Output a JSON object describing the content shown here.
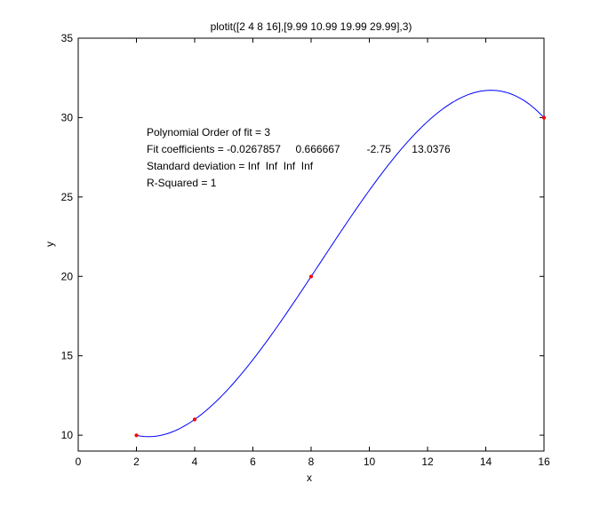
{
  "chart_data": {
    "type": "scatter",
    "title": "plotit([2 4 8 16],[9.99 10.99 19.99 29.99],3)",
    "xlabel": "x",
    "ylabel": "y",
    "xlim": [
      0,
      16
    ],
    "ylim": [
      9,
      35
    ],
    "xticks": [
      0,
      2,
      4,
      6,
      8,
      10,
      12,
      14,
      16
    ],
    "yticks": [
      10,
      15,
      20,
      25,
      30,
      35
    ],
    "grid": false,
    "series": [
      {
        "kind": "points",
        "x": [
          2,
          4,
          8,
          16
        ],
        "y": [
          9.99,
          10.99,
          19.99,
          29.99
        ],
        "color": "#ff0000"
      },
      {
        "kind": "fit_curve",
        "degree": 3,
        "coefficients": [
          -0.0267857,
          0.666667,
          -2.75,
          13.0376
        ],
        "x_range": [
          2,
          16
        ],
        "color": "#0000ff"
      }
    ],
    "annotations": [
      "Polynomial Order of fit = 3",
      "Fit coefficients = -0.0267857     0.666667         -2.75       13.0376",
      "Standard deviation = Inf  Inf  Inf  Inf",
      "R-Squared = 1"
    ]
  }
}
